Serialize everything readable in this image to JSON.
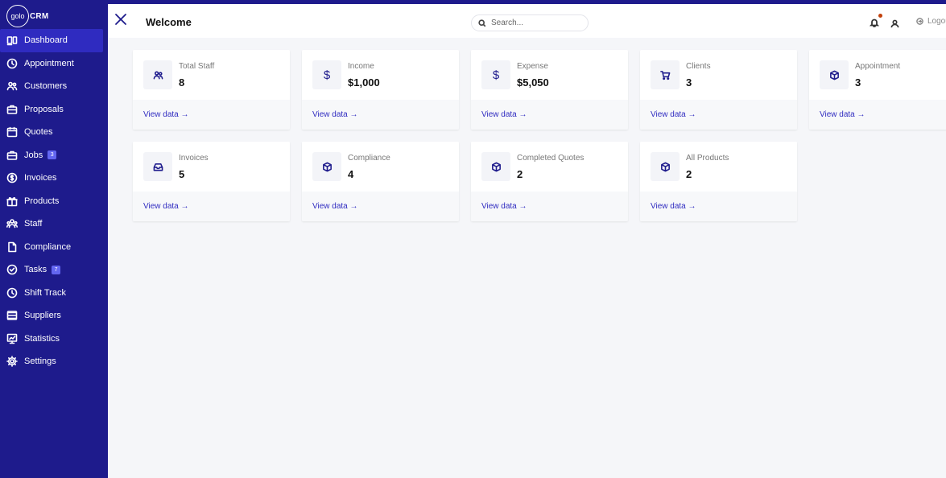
{
  "brand": {
    "logo_mark": "golo",
    "logo_text": "CRM"
  },
  "sidebar": {
    "items": [
      {
        "label": "Dashboard",
        "icon": "dashboard-icon"
      },
      {
        "label": "Appointment",
        "icon": "clock-icon"
      },
      {
        "label": "Customers",
        "icon": "users-icon"
      },
      {
        "label": "Proposals",
        "icon": "briefcase-icon"
      },
      {
        "label": "Quotes",
        "icon": "calendar-icon"
      },
      {
        "label": "Jobs",
        "icon": "briefcase-icon",
        "badge": "3"
      },
      {
        "label": "Invoices",
        "icon": "dollar-circle-icon"
      },
      {
        "label": "Products",
        "icon": "gift-icon"
      },
      {
        "label": "Staff",
        "icon": "staff-icon"
      },
      {
        "label": "Compliance",
        "icon": "file-icon"
      },
      {
        "label": "Tasks",
        "icon": "check-circle-icon",
        "badge": "7"
      },
      {
        "label": "Shift Track",
        "icon": "clock-icon"
      },
      {
        "label": "Suppliers",
        "icon": "list-icon"
      },
      {
        "label": "Statistics",
        "icon": "chart-icon"
      },
      {
        "label": "Settings",
        "icon": "gear-icon"
      }
    ],
    "active_index": 0
  },
  "header": {
    "title": "Welcome",
    "search_placeholder": "Search...",
    "logout_label": "Logout"
  },
  "cards": [
    {
      "label": "Total Staff",
      "value": "8",
      "link": "View data →",
      "icon": "users-icon"
    },
    {
      "label": "Income",
      "value": "$1,000",
      "link": "View data →",
      "icon": "dollar-icon"
    },
    {
      "label": "Expense",
      "value": "$5,050",
      "link": "View data →",
      "icon": "dollar-icon"
    },
    {
      "label": "Clients",
      "value": "3",
      "link": "View data →",
      "icon": "cart-icon"
    },
    {
      "label": "Appointment",
      "value": "3",
      "link": "View data →",
      "icon": "box-icon"
    },
    {
      "label": "Invoices",
      "value": "5",
      "link": "View data →",
      "icon": "inbox-icon"
    },
    {
      "label": "Compliance",
      "value": "4",
      "link": "View data →",
      "icon": "box-icon"
    },
    {
      "label": "Completed Quotes",
      "value": "2",
      "link": "View data →",
      "icon": "box-icon"
    },
    {
      "label": "All Products",
      "value": "2",
      "link": "View data →",
      "icon": "box-icon"
    }
  ],
  "colors": {
    "sidebar": "#1e1b8c",
    "active": "#2f2bc0",
    "badge": "#6366f1",
    "notification_dot": "#c2410c",
    "background": "#f5f6f9"
  }
}
